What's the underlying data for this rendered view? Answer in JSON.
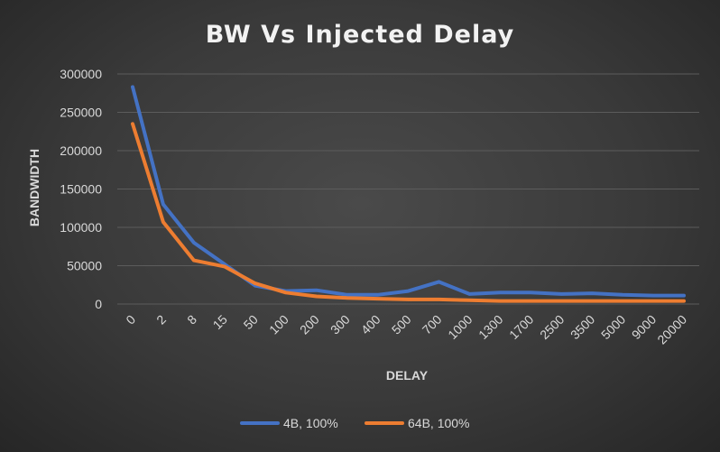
{
  "chart_data": {
    "type": "line",
    "title": "BW Vs Injected Delay",
    "xlabel": "DELAY",
    "ylabel": "BANDWIDTH",
    "categories": [
      "0",
      "2",
      "8",
      "15",
      "50",
      "100",
      "200",
      "300",
      "400",
      "500",
      "700",
      "1000",
      "1300",
      "1700",
      "2500",
      "3500",
      "5000",
      "9000",
      "20000"
    ],
    "ylim": [
      0,
      300000
    ],
    "yticks": [
      "0",
      "50000",
      "100000",
      "150000",
      "200000",
      "250000",
      "300000"
    ],
    "grid": true,
    "legend_position": "bottom",
    "series": [
      {
        "name": "4B, 100%",
        "color": "#4472c4",
        "values": [
          283000,
          130000,
          80000,
          52000,
          24000,
          17000,
          18000,
          12000,
          12000,
          17000,
          29000,
          13000,
          15000,
          15000,
          13000,
          14000,
          12000,
          11000,
          11000
        ]
      },
      {
        "name": "64B, 100%",
        "color": "#ed7d31",
        "values": [
          235000,
          107000,
          57000,
          49000,
          27000,
          15000,
          10000,
          8000,
          7000,
          6000,
          6000,
          5000,
          4000,
          4000,
          4000,
          4000,
          4000,
          4000,
          4000
        ]
      }
    ]
  }
}
